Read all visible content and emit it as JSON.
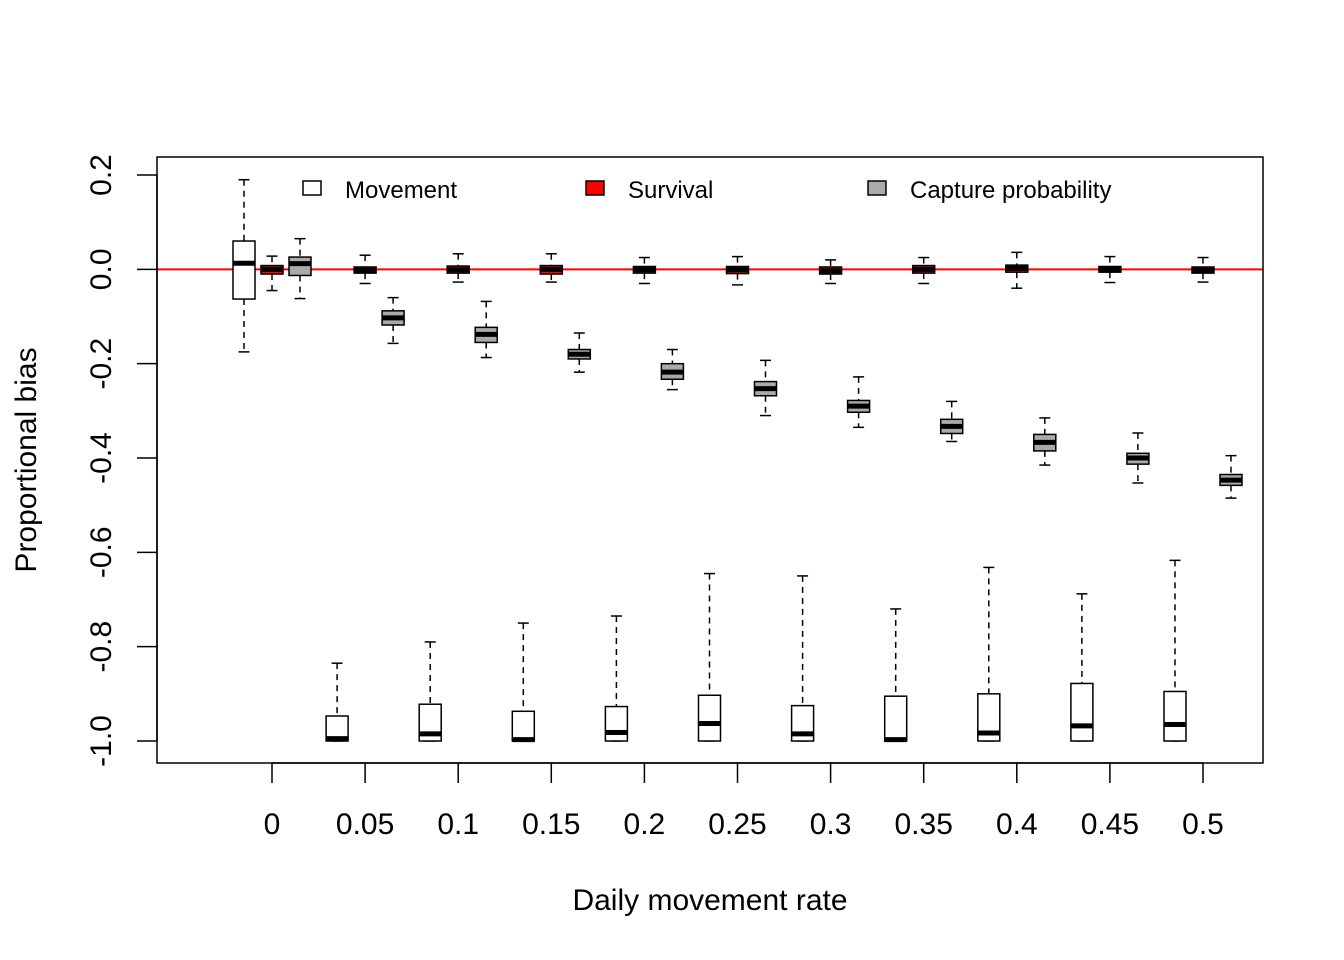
{
  "chart_data": {
    "type": "boxplot",
    "xlabel": "Daily movement rate",
    "ylabel": "Proportional bias",
    "categories": [
      "0",
      "0.05",
      "0.1",
      "0.15",
      "0.2",
      "0.25",
      "0.3",
      "0.35",
      "0.4",
      "0.45",
      "0.5"
    ],
    "ylim": [
      -1.05,
      0.235
    ],
    "y_ticks": [
      "-1.0",
      "-0.8",
      "-0.6",
      "-0.4",
      "-0.2",
      "0.0",
      "0.2"
    ],
    "reference_line": {
      "y": 0,
      "color": "#ff0000"
    },
    "grid": false,
    "legend": {
      "placement": "top",
      "entries": [
        {
          "label": "Movement",
          "color": "#ffffff"
        },
        {
          "label": "Survival",
          "color": "#ff0000"
        },
        {
          "label": "Capture probability",
          "color": "#aaaaaa"
        }
      ]
    },
    "series": [
      {
        "name": "Movement",
        "color": "#ffffff",
        "boxes": [
          {
            "min": -0.175,
            "q1": -0.063,
            "median": 0.013,
            "q3": 0.06,
            "max": 0.19
          },
          {
            "min": -1.0,
            "q1": -1.0,
            "median": -0.995,
            "q3": -0.947,
            "max": -0.835
          },
          {
            "min": -1.0,
            "q1": -1.0,
            "median": -0.985,
            "q3": -0.922,
            "max": -0.79
          },
          {
            "min": -1.0,
            "q1": -1.0,
            "median": -0.997,
            "q3": -0.937,
            "max": -0.75
          },
          {
            "min": -1.0,
            "q1": -1.0,
            "median": -0.982,
            "q3": -0.927,
            "max": -0.735
          },
          {
            "min": -1.0,
            "q1": -1.0,
            "median": -0.963,
            "q3": -0.903,
            "max": -0.645
          },
          {
            "min": -1.0,
            "q1": -1.0,
            "median": -0.985,
            "q3": -0.925,
            "max": -0.65
          },
          {
            "min": -1.0,
            "q1": -1.0,
            "median": -0.997,
            "q3": -0.905,
            "max": -0.72
          },
          {
            "min": -1.0,
            "q1": -1.0,
            "median": -0.983,
            "q3": -0.9,
            "max": -0.632
          },
          {
            "min": -1.0,
            "q1": -1.0,
            "median": -0.968,
            "q3": -0.878,
            "max": -0.688
          },
          {
            "min": -1.0,
            "q1": -1.0,
            "median": -0.965,
            "q3": -0.895,
            "max": -0.617
          }
        ]
      },
      {
        "name": "Survival",
        "color": "#ff0000",
        "boxes": [
          {
            "min": -0.045,
            "q1": -0.01,
            "median": 0.0,
            "q3": 0.008,
            "max": 0.028
          },
          {
            "min": -0.03,
            "q1": -0.008,
            "median": -0.002,
            "q3": 0.005,
            "max": 0.03
          },
          {
            "min": -0.027,
            "q1": -0.008,
            "median": -0.001,
            "q3": 0.007,
            "max": 0.033
          },
          {
            "min": -0.027,
            "q1": -0.01,
            "median": 0.0,
            "q3": 0.008,
            "max": 0.033
          },
          {
            "min": -0.03,
            "q1": -0.008,
            "median": -0.001,
            "q3": 0.006,
            "max": 0.025
          },
          {
            "min": -0.033,
            "q1": -0.009,
            "median": -0.001,
            "q3": 0.006,
            "max": 0.027
          },
          {
            "min": -0.03,
            "q1": -0.01,
            "median": -0.003,
            "q3": 0.005,
            "max": 0.02
          },
          {
            "min": -0.03,
            "q1": -0.008,
            "median": 0.0,
            "q3": 0.008,
            "max": 0.025
          },
          {
            "min": -0.04,
            "q1": -0.006,
            "median": 0.002,
            "q3": 0.009,
            "max": 0.036
          },
          {
            "min": -0.028,
            "q1": -0.006,
            "median": 0.0,
            "q3": 0.006,
            "max": 0.027
          },
          {
            "min": -0.027,
            "q1": -0.008,
            "median": -0.002,
            "q3": 0.005,
            "max": 0.025
          }
        ]
      },
      {
        "name": "Capture probability",
        "color": "#aaaaaa",
        "boxes": [
          {
            "min": -0.062,
            "q1": -0.013,
            "median": 0.012,
            "q3": 0.026,
            "max": 0.065
          },
          {
            "min": -0.157,
            "q1": -0.118,
            "median": -0.103,
            "q3": -0.088,
            "max": -0.06
          },
          {
            "min": -0.187,
            "q1": -0.155,
            "median": -0.138,
            "q3": -0.123,
            "max": -0.068
          },
          {
            "min": -0.218,
            "q1": -0.19,
            "median": -0.18,
            "q3": -0.17,
            "max": -0.135
          },
          {
            "min": -0.255,
            "q1": -0.233,
            "median": -0.218,
            "q3": -0.2,
            "max": -0.17
          },
          {
            "min": -0.31,
            "q1": -0.268,
            "median": -0.253,
            "q3": -0.238,
            "max": -0.193
          },
          {
            "min": -0.335,
            "q1": -0.303,
            "median": -0.29,
            "q3": -0.278,
            "max": -0.228
          },
          {
            "min": -0.365,
            "q1": -0.348,
            "median": -0.333,
            "q3": -0.318,
            "max": -0.28
          },
          {
            "min": -0.415,
            "q1": -0.385,
            "median": -0.367,
            "q3": -0.35,
            "max": -0.315
          },
          {
            "min": -0.453,
            "q1": -0.413,
            "median": -0.4,
            "q3": -0.39,
            "max": -0.347
          },
          {
            "min": -0.485,
            "q1": -0.458,
            "median": -0.447,
            "q3": -0.435,
            "max": -0.395
          }
        ]
      }
    ]
  }
}
